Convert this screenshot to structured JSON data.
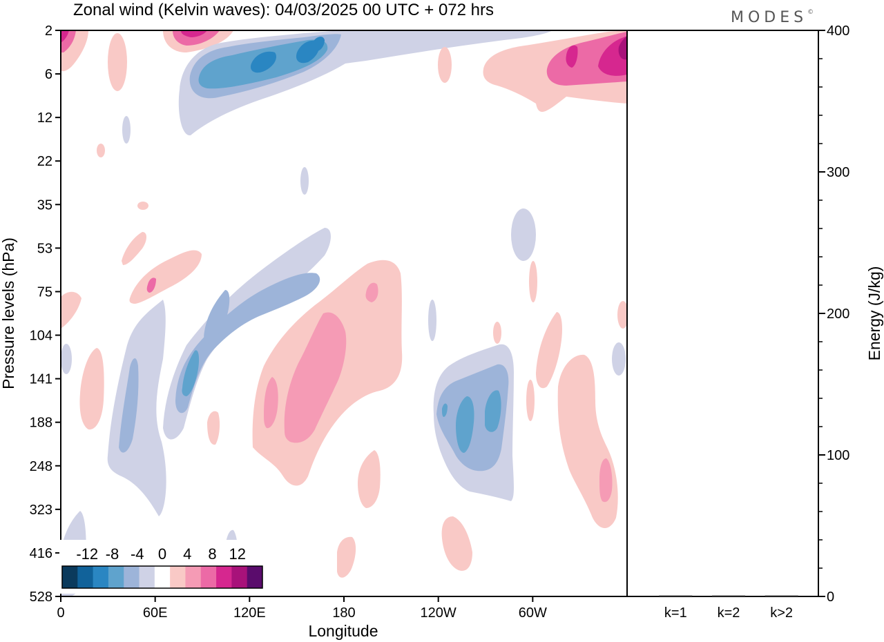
{
  "chart_data": {
    "type": "heatmap",
    "title": "Zonal wind (Kelvin waves):  04/03/2025  00 UTC  + 072 hrs",
    "brand": "MODES",
    "brand_mark": "©",
    "xlabel": "Longitude",
    "ylabel": "Pressure levels (hPa)",
    "x_ticks": [
      "0",
      "60E",
      "120E",
      "180",
      "120W",
      "60W"
    ],
    "y_ticks": [
      "2",
      "6",
      "12",
      "22",
      "35",
      "53",
      "75",
      "104",
      "141",
      "188",
      "248",
      "323",
      "416",
      "528"
    ],
    "colorbar": {
      "labels": [
        "-12",
        "-8",
        "-4",
        "0",
        "4",
        "8",
        "12"
      ],
      "levels": [
        -16,
        -14,
        -12,
        -10,
        -8,
        -6,
        -4,
        -2,
        2,
        4,
        6,
        8,
        10,
        12,
        14,
        16
      ],
      "colors": [
        "#0b3a5c",
        "#11629a",
        "#2a86c2",
        "#5fa3cd",
        "#9db4d9",
        "#cfd2e6",
        "#ffffff",
        "#f9c9c6",
        "#f59bb5",
        "#ec6aa6",
        "#d6278f",
        "#a8127a",
        "#5a0c6c"
      ]
    },
    "energy_panel": {
      "ylabel": "Energy (J/kg)",
      "y_ticks": [
        "0",
        "100",
        "200",
        "300",
        "400"
      ],
      "ylim": [
        0,
        400
      ],
      "categories": [
        "k=1",
        "k=2",
        "k>2"
      ],
      "values": [
        0.3,
        0.5,
        0.5
      ]
    },
    "features": [
      {
        "name": "Upper-level easterly (blue) band",
        "lon_range": [
          75,
          175
        ],
        "level_range": [
          "2",
          "12"
        ],
        "sign": "negative",
        "max_abs": 10
      },
      {
        "name": "Upper-level westerly near dateline east",
        "lon_range": [
          290,
          360
        ],
        "level_range": [
          "2",
          "12"
        ],
        "sign": "positive",
        "max_abs": 12
      },
      {
        "name": "Mid-level tilted easterly band",
        "lon_range": [
          30,
          170
        ],
        "level_range": [
          "53",
          "248"
        ],
        "sign": "negative",
        "max_abs": 8
      },
      {
        "name": "Mid-level westerly band",
        "lon_range": [
          120,
          215
        ],
        "level_range": [
          "75",
          "248"
        ],
        "sign": "positive",
        "max_abs": 6
      },
      {
        "name": "Easterly near 120W",
        "lon_range": [
          238,
          288
        ],
        "level_range": [
          "104",
          "323"
        ],
        "sign": "negative",
        "max_abs": 8
      },
      {
        "name": "Westerly near 60W",
        "lon_range": [
          298,
          355
        ],
        "level_range": [
          "104",
          "323"
        ],
        "sign": "positive",
        "max_abs": 6
      }
    ]
  }
}
